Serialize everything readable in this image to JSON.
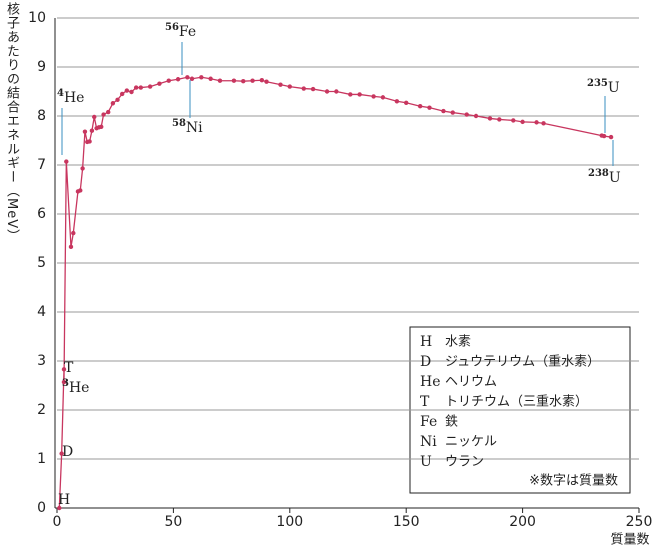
{
  "chart_data": {
    "type": "line",
    "y_label": "核子あたりの結合エネルギー（MeV）",
    "x_label": "質量数",
    "x": [
      1,
      2,
      3,
      3,
      4,
      6,
      7,
      9,
      10,
      11,
      12,
      13,
      14,
      15,
      16,
      17,
      18,
      19,
      20,
      22,
      24,
      26,
      28,
      30,
      32,
      34,
      36,
      40,
      44,
      48,
      52,
      56,
      58,
      62,
      66,
      70,
      76,
      80,
      84,
      88,
      90,
      96,
      100,
      106,
      110,
      116,
      120,
      126,
      130,
      136,
      140,
      146,
      150,
      156,
      160,
      166,
      170,
      176,
      180,
      186,
      190,
      196,
      200,
      206,
      209,
      234,
      235,
      238
    ],
    "series": [
      {
        "color": "#c8365f",
        "values": [
          0,
          1.11,
          2.83,
          2.57,
          7.07,
          5.33,
          5.61,
          6.46,
          6.48,
          6.93,
          7.68,
          7.47,
          7.48,
          7.7,
          7.98,
          7.75,
          7.77,
          7.78,
          8.03,
          8.08,
          8.26,
          8.33,
          8.45,
          8.52,
          8.49,
          8.58,
          8.58,
          8.6,
          8.66,
          8.72,
          8.75,
          8.79,
          8.76,
          8.79,
          8.76,
          8.72,
          8.72,
          8.71,
          8.72,
          8.73,
          8.7,
          8.64,
          8.6,
          8.56,
          8.55,
          8.5,
          8.5,
          8.44,
          8.44,
          8.4,
          8.38,
          8.3,
          8.27,
          8.2,
          8.17,
          8.1,
          8.07,
          8.03,
          8.0,
          7.95,
          7.93,
          7.91,
          7.88,
          7.87,
          7.85,
          7.6,
          7.59,
          7.57
        ]
      }
    ],
    "xlim": [
      0,
      250
    ],
    "xticks": [
      0,
      50,
      100,
      150,
      200,
      250
    ],
    "ylim": [
      0,
      10
    ],
    "yticks": [
      0,
      1,
      2,
      3,
      4,
      5,
      6,
      7,
      8,
      9,
      10
    ],
    "grid": true,
    "annotations": [
      {
        "mass": "4",
        "symbol": "He"
      },
      {
        "mass": "56",
        "symbol": "Fe"
      },
      {
        "mass": "58",
        "symbol": "Ni"
      },
      {
        "mass": "235",
        "symbol": "U"
      },
      {
        "mass": "238",
        "symbol": "U"
      },
      {
        "mass": "",
        "symbol": "T"
      },
      {
        "mass": "3",
        "symbol": "He"
      },
      {
        "mass": "",
        "symbol": "D"
      },
      {
        "mass": "",
        "symbol": "H"
      }
    ],
    "legend": [
      {
        "symbol": "H",
        "name": "水素"
      },
      {
        "symbol": "D",
        "name": "ジュウテリウム（重水素）"
      },
      {
        "symbol": "He",
        "name": "ヘリウム"
      },
      {
        "symbol": "T",
        "name": "トリチウム（三重水素）"
      },
      {
        "symbol": "Fe",
        "name": "鉄"
      },
      {
        "symbol": "Ni",
        "name": "ニッケル"
      },
      {
        "symbol": "U",
        "name": "ウラン"
      }
    ],
    "note": "※数字は質量数"
  }
}
